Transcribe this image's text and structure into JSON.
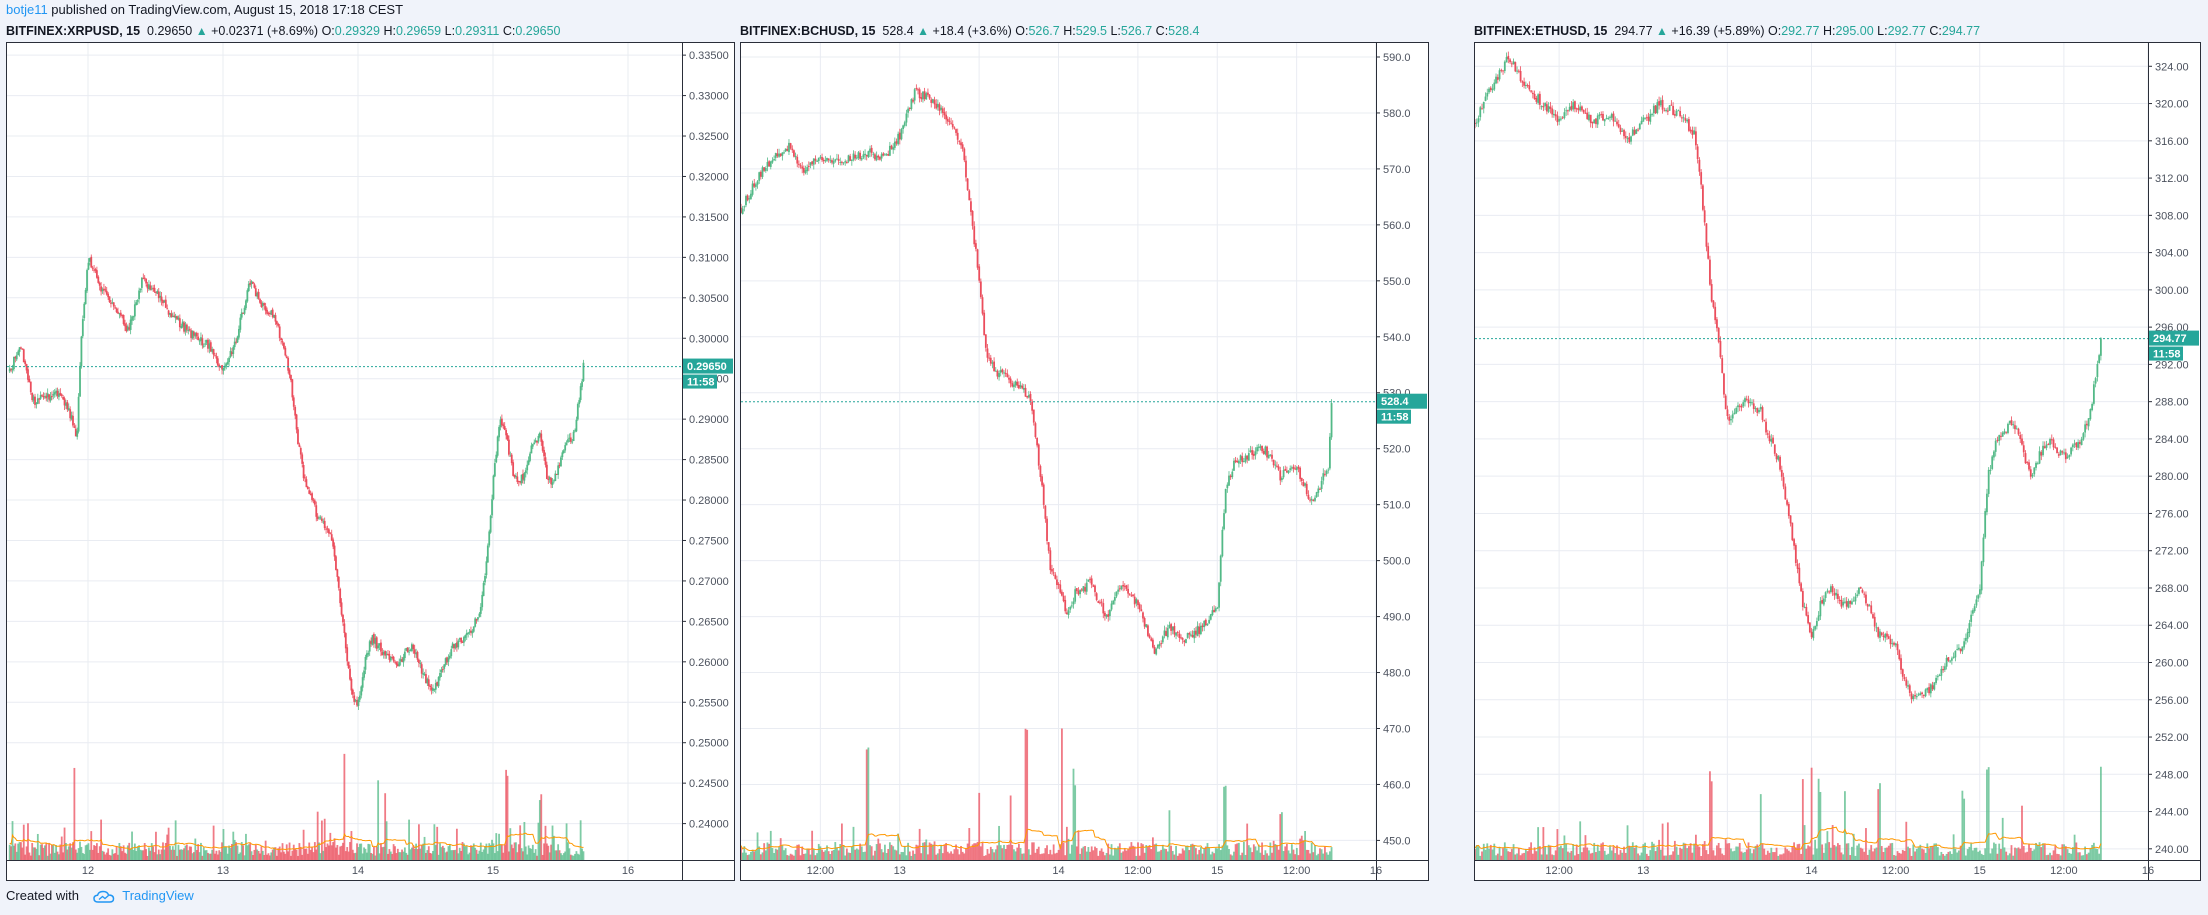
{
  "header": {
    "author": "botje11",
    "published_text": " published on TradingView.com, August 15, 2018 17:18 CEST"
  },
  "footer": {
    "created_with": "Created with",
    "brand": "TradingView"
  },
  "colors": {
    "up": "#53b987",
    "down": "#eb4d5c",
    "ma": "#ff9800",
    "grid": "#e9ecf2",
    "accent": "#26a69a"
  },
  "chart_data": [
    {
      "type": "candlestick",
      "symbol": "BITFINEX:XRPUSD, 15",
      "last": "0.29650",
      "change": "+0.02371 (+8.69%)",
      "open": "0.29329",
      "high": "0.29659",
      "low": "0.29311",
      "close": "0.29650",
      "price_tag": "0.29650",
      "time_tag": "11:58",
      "ylim": [
        0.2355,
        0.3365
      ],
      "yticks": [
        0.24,
        0.245,
        0.25,
        0.255,
        0.26,
        0.265,
        0.27,
        0.275,
        0.28,
        0.285,
        0.29,
        0.295,
        0.3,
        0.305,
        0.31,
        0.315,
        0.32,
        0.325,
        0.33,
        0.335
      ],
      "ytick_labels": [
        "0.24000",
        "0.24500",
        "0.25000",
        "0.25500",
        "0.26000",
        "0.26500",
        "0.27000",
        "0.27500",
        "0.28000",
        "0.28500",
        "0.29000",
        "0.29500",
        "0.30000",
        "0.30500",
        "0.31000",
        "0.31500",
        "0.32000",
        "0.32500",
        "0.33000",
        "0.33500"
      ],
      "xlim": [
        11.4,
        16.4
      ],
      "xticks": [
        12,
        13,
        14,
        15,
        16
      ],
      "xtick_labels": [
        "12",
        "13",
        "14",
        "15",
        "16"
      ],
      "path": [
        [
          11.42,
          0.296
        ],
        [
          11.5,
          0.299
        ],
        [
          11.6,
          0.292
        ],
        [
          11.8,
          0.2935
        ],
        [
          11.92,
          0.288
        ],
        [
          11.95,
          0.3
        ],
        [
          12.0,
          0.31
        ],
        [
          12.1,
          0.306
        ],
        [
          12.2,
          0.304
        ],
        [
          12.3,
          0.301
        ],
        [
          12.4,
          0.307
        ],
        [
          12.5,
          0.306
        ],
        [
          12.6,
          0.303
        ],
        [
          12.8,
          0.3
        ],
        [
          12.9,
          0.299
        ],
        [
          13.0,
          0.296
        ],
        [
          13.1,
          0.3
        ],
        [
          13.2,
          0.307
        ],
        [
          13.3,
          0.304
        ],
        [
          13.4,
          0.302
        ],
        [
          13.5,
          0.295
        ],
        [
          13.55,
          0.288
        ],
        [
          13.6,
          0.283
        ],
        [
          13.7,
          0.278
        ],
        [
          13.8,
          0.276
        ],
        [
          13.85,
          0.27
        ],
        [
          13.9,
          0.263
        ],
        [
          13.95,
          0.256
        ],
        [
          14.0,
          0.255
        ],
        [
          14.05,
          0.26
        ],
        [
          14.1,
          0.263
        ],
        [
          14.2,
          0.261
        ],
        [
          14.3,
          0.26
        ],
        [
          14.4,
          0.262
        ],
        [
          14.5,
          0.258
        ],
        [
          14.55,
          0.256
        ],
        [
          14.6,
          0.258
        ],
        [
          14.7,
          0.262
        ],
        [
          14.8,
          0.263
        ],
        [
          14.9,
          0.266
        ],
        [
          14.95,
          0.272
        ],
        [
          15.0,
          0.282
        ],
        [
          15.05,
          0.29
        ],
        [
          15.1,
          0.288
        ],
        [
          15.15,
          0.283
        ],
        [
          15.2,
          0.282
        ],
        [
          15.3,
          0.287
        ],
        [
          15.35,
          0.288
        ],
        [
          15.4,
          0.283
        ],
        [
          15.45,
          0.282
        ],
        [
          15.5,
          0.285
        ],
        [
          15.55,
          0.287
        ],
        [
          15.6,
          0.288
        ],
        [
          15.67,
          0.2965
        ]
      ],
      "vol_spikes": [
        [
          11.9,
          0.55
        ],
        [
          13.9,
          0.6
        ],
        [
          14.15,
          0.42
        ],
        [
          14.2,
          0.38
        ],
        [
          13.7,
          0.22
        ],
        [
          15.1,
          0.5
        ],
        [
          15.35,
          0.3
        ],
        [
          15.65,
          0.2
        ]
      ]
    },
    {
      "type": "candlestick",
      "symbol": "BITFINEX:BCHUSD, 15",
      "last": "528.4",
      "change": "+18.4 (+3.6%)",
      "open": "526.7",
      "high": "529.5",
      "low": "526.7",
      "close": "528.4",
      "price_tag": "528.4",
      "time_tag": "11:58",
      "ylim": [
        446.5,
        592.5
      ],
      "yticks": [
        450,
        460,
        470,
        480,
        490,
        500,
        510,
        520,
        530,
        540,
        550,
        560,
        570,
        580,
        590
      ],
      "ytick_labels": [
        "450.0",
        "460.0",
        "470.0",
        "480.0",
        "490.0",
        "500.0",
        "510.0",
        "520.0",
        "530.0",
        "540.0",
        "550.0",
        "560.0",
        "570.0",
        "580.0",
        "590.0"
      ],
      "xlim": [
        12.0,
        16.0
      ],
      "xticks": [
        12.5,
        13,
        13.5,
        14,
        14.5,
        15,
        15.5,
        16
      ],
      "xtick_labels": [
        "12:00",
        "13",
        "",
        "14",
        "12:00",
        "15",
        "12:00",
        "16"
      ],
      "path": [
        [
          12.0,
          563
        ],
        [
          12.1,
          568
        ],
        [
          12.2,
          572
        ],
        [
          12.3,
          574
        ],
        [
          12.4,
          570
        ],
        [
          12.5,
          572
        ],
        [
          12.6,
          571
        ],
        [
          12.7,
          572
        ],
        [
          12.8,
          573
        ],
        [
          12.9,
          572
        ],
        [
          13.0,
          576
        ],
        [
          13.1,
          584
        ],
        [
          13.2,
          582
        ],
        [
          13.3,
          579
        ],
        [
          13.4,
          573
        ],
        [
          13.45,
          562
        ],
        [
          13.5,
          550
        ],
        [
          13.55,
          536
        ],
        [
          13.6,
          534
        ],
        [
          13.7,
          532
        ],
        [
          13.8,
          530
        ],
        [
          13.83,
          528
        ],
        [
          13.9,
          512
        ],
        [
          13.95,
          498
        ],
        [
          14.0,
          496
        ],
        [
          14.05,
          490
        ],
        [
          14.1,
          494
        ],
        [
          14.2,
          496
        ],
        [
          14.3,
          490
        ],
        [
          14.4,
          496
        ],
        [
          14.5,
          492
        ],
        [
          14.6,
          484
        ],
        [
          14.7,
          488
        ],
        [
          14.8,
          486
        ],
        [
          14.9,
          488
        ],
        [
          15.0,
          492
        ],
        [
          15.05,
          512
        ],
        [
          15.1,
          517
        ],
        [
          15.2,
          519
        ],
        [
          15.3,
          520
        ],
        [
          15.4,
          515
        ],
        [
          15.5,
          517
        ],
        [
          15.6,
          510
        ],
        [
          15.7,
          517
        ],
        [
          15.72,
          528.4
        ]
      ],
      "vol_spikes": [
        [
          12.8,
          0.65
        ],
        [
          13.8,
          0.7
        ],
        [
          14.02,
          0.7
        ],
        [
          14.1,
          0.45
        ],
        [
          13.5,
          0.4
        ],
        [
          13.7,
          0.28
        ],
        [
          15.05,
          0.35
        ],
        [
          14.7,
          0.3
        ],
        [
          15.4,
          0.22
        ]
      ]
    },
    {
      "type": "candlestick",
      "symbol": "BITFINEX:ETHUSD, 15",
      "last": "294.77",
      "change": "+16.39 (+5.89%)",
      "open": "292.77",
      "high": "295.00",
      "low": "292.77",
      "close": "294.77",
      "price_tag": "294.77",
      "time_tag": "11:58",
      "ylim": [
        238.8,
        326.5
      ],
      "yticks": [
        240,
        244,
        248,
        252,
        256,
        260,
        264,
        268,
        272,
        276,
        280,
        284,
        288,
        292,
        296,
        300,
        304,
        308,
        312,
        316,
        320,
        324
      ],
      "ytick_labels": [
        "240.00",
        "244.00",
        "248.00",
        "252.00",
        "256.00",
        "260.00",
        "264.00",
        "268.00",
        "272.00",
        "276.00",
        "280.00",
        "284.00",
        "288.00",
        "292.00",
        "296.00",
        "300.00",
        "304.00",
        "308.00",
        "312.00",
        "316.00",
        "320.00",
        "324.00"
      ],
      "xlim": [
        12.0,
        16.0
      ],
      "xticks": [
        12.5,
        13,
        13.5,
        14,
        14.5,
        15,
        15.5,
        16
      ],
      "xtick_labels": [
        "12:00",
        "13",
        "",
        "14",
        "12:00",
        "15",
        "12:00",
        "16"
      ],
      "path": [
        [
          12.0,
          318
        ],
        [
          12.1,
          322
        ],
        [
          12.2,
          325
        ],
        [
          12.3,
          322
        ],
        [
          12.4,
          320
        ],
        [
          12.5,
          318
        ],
        [
          12.6,
          320
        ],
        [
          12.7,
          318
        ],
        [
          12.8,
          319
        ],
        [
          12.9,
          316
        ],
        [
          13.0,
          318
        ],
        [
          13.1,
          320
        ],
        [
          13.2,
          319
        ],
        [
          13.3,
          317
        ],
        [
          13.35,
          310
        ],
        [
          13.4,
          300
        ],
        [
          13.45,
          294
        ],
        [
          13.5,
          286
        ],
        [
          13.6,
          288
        ],
        [
          13.7,
          287
        ],
        [
          13.75,
          284
        ],
        [
          13.8,
          282
        ],
        [
          13.9,
          272
        ],
        [
          13.95,
          266
        ],
        [
          14.0,
          263
        ],
        [
          14.05,
          266
        ],
        [
          14.1,
          268
        ],
        [
          14.2,
          266
        ],
        [
          14.3,
          268
        ],
        [
          14.4,
          263
        ],
        [
          14.5,
          262
        ],
        [
          14.55,
          258
        ],
        [
          14.6,
          256
        ],
        [
          14.7,
          257
        ],
        [
          14.8,
          260
        ],
        [
          14.9,
          262
        ],
        [
          15.0,
          268
        ],
        [
          15.05,
          280
        ],
        [
          15.1,
          284
        ],
        [
          15.2,
          286
        ],
        [
          15.3,
          280
        ],
        [
          15.4,
          284
        ],
        [
          15.5,
          282
        ],
        [
          15.6,
          284
        ],
        [
          15.65,
          286
        ],
        [
          15.72,
          294.77
        ]
      ],
      "vol_spikes": [
        [
          13.4,
          0.45
        ],
        [
          13.7,
          0.4
        ],
        [
          13.95,
          0.45
        ],
        [
          14.0,
          0.55
        ],
        [
          14.05,
          0.38
        ],
        [
          14.2,
          0.3
        ],
        [
          14.4,
          0.4
        ],
        [
          14.9,
          0.35
        ],
        [
          15.05,
          0.48
        ],
        [
          15.72,
          0.46
        ],
        [
          15.25,
          0.25
        ]
      ]
    }
  ]
}
